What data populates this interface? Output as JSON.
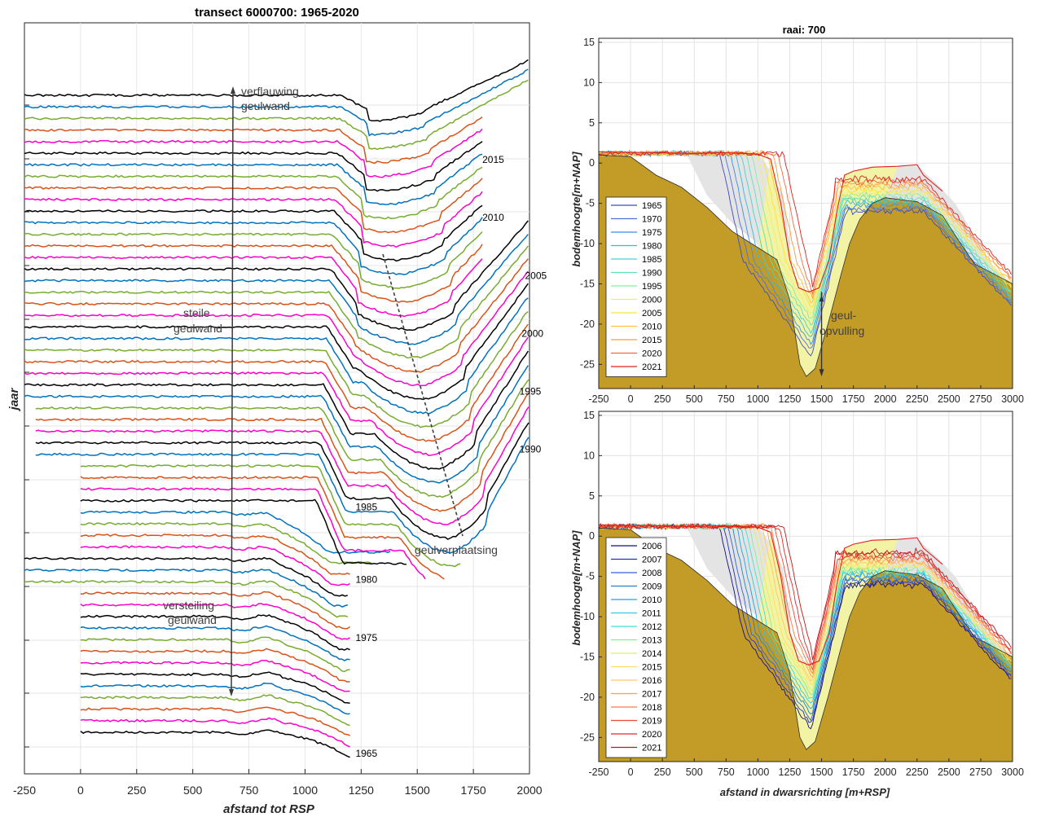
{
  "chart_data": [
    {
      "type": "line",
      "title": "transect 6000700: 1965-2020",
      "xlabel": "afstand tot RSP",
      "ylabel": "jaar",
      "xlim": [
        -250,
        2000
      ],
      "x_ticks": [
        "-250",
        "0",
        "250",
        "500",
        "750",
        "1000",
        "1250",
        "1500",
        "1750",
        "2000"
      ],
      "grid": true,
      "profile_colors": [
        "#000000",
        "#0072bd",
        "#77ac30",
        "#d95319",
        "#ff00cc"
      ],
      "years_first": 1965,
      "years_last": 2020,
      "year_labels": [
        {
          "text": "2015",
          "year": 2015,
          "x": 1790
        },
        {
          "text": "2010",
          "year": 2010,
          "x": 1790
        },
        {
          "text": "2005",
          "year": 2005,
          "x": 1980
        },
        {
          "text": "2000",
          "year": 2000,
          "x": 1965
        },
        {
          "text": "1995",
          "year": 1995,
          "x": 1955
        },
        {
          "text": "1990",
          "year": 1990,
          "x": 1955
        },
        {
          "text": "1985",
          "year": 1985,
          "x": 1225
        },
        {
          "text": "1980",
          "year": 1980,
          "x": 1225
        },
        {
          "text": "1975",
          "year": 1975,
          "x": 1225
        },
        {
          "text": "1965",
          "year": 1965,
          "x": 1225
        }
      ],
      "annotations": {
        "top": [
          "verflauwing",
          "geulwand"
        ],
        "middle": [
          "steile",
          "geulwand"
        ],
        "bottom": [
          "versteiling",
          "geulwand"
        ],
        "shift": "geulverplaatsing"
      }
    },
    {
      "type": "area",
      "title": "raai: 700",
      "ylabel": "bodemhoogte[m+NAP]",
      "xlim": [
        -250,
        3000
      ],
      "ylim": [
        -28,
        15
      ],
      "x_ticks": [
        "-250",
        "0",
        "250",
        "500",
        "750",
        "1000",
        "1250",
        "1500",
        "1750",
        "2000",
        "2250",
        "2500",
        "2750",
        "3000"
      ],
      "y_ticks": [
        "15",
        "10",
        "5",
        "0",
        "-5",
        "-10",
        "-15",
        "-20",
        "-25"
      ],
      "legend": [
        "1965",
        "1970",
        "1975",
        "1980",
        "1985",
        "1990",
        "1995",
        "2000",
        "2005",
        "2010",
        "2015",
        "2020",
        "2021"
      ],
      "legend_colors": [
        "#3b4cc0",
        "#4f6ee0",
        "#3a8ee8",
        "#36b8e0",
        "#45d3d0",
        "#5ee0b8",
        "#86eca0",
        "#e8f070",
        "#ffe040",
        "#ffc040",
        "#ff9a40",
        "#f06a40",
        "#e02020"
      ],
      "fill_colors": {
        "bed": "#c39b27",
        "grey_fill": "#e4e4e4",
        "yellow_fill": "#f3f3a6"
      },
      "annotation": [
        "geul-",
        "opvulling"
      ]
    },
    {
      "type": "area",
      "ylabel": "bodemhoogte[m+NAP]",
      "xlabel": "afstand in dwarsrichting [m+RSP]",
      "xlim": [
        -250,
        3000
      ],
      "ylim": [
        -28,
        15
      ],
      "x_ticks": [
        "-250",
        "0",
        "250",
        "500",
        "750",
        "1000",
        "1250",
        "1500",
        "1750",
        "2000",
        "2250",
        "2500",
        "2750",
        "3000"
      ],
      "y_ticks": [
        "15",
        "10",
        "5",
        "0",
        "-5",
        "-10",
        "-15",
        "-20",
        "-25"
      ],
      "legend": [
        "2006",
        "2007",
        "2008",
        "2009",
        "2010",
        "2011",
        "2012",
        "2013",
        "2014",
        "2015",
        "2016",
        "2017",
        "2018",
        "2019",
        "2020",
        "2021"
      ],
      "legend_colors": [
        "#101080",
        "#2030c0",
        "#3060e0",
        "#2080d0",
        "#20a0e0",
        "#30c8e8",
        "#40e0d0",
        "#80f0a0",
        "#d8f070",
        "#ffe060",
        "#ffc868",
        "#ffa050",
        "#ff7840",
        "#f04838",
        "#e02828",
        "#c01818"
      ],
      "fill_colors": {
        "bed": "#c39b27",
        "grey_fill": "#e4e4e4",
        "yellow_fill": "#f3f3a6"
      }
    }
  ]
}
